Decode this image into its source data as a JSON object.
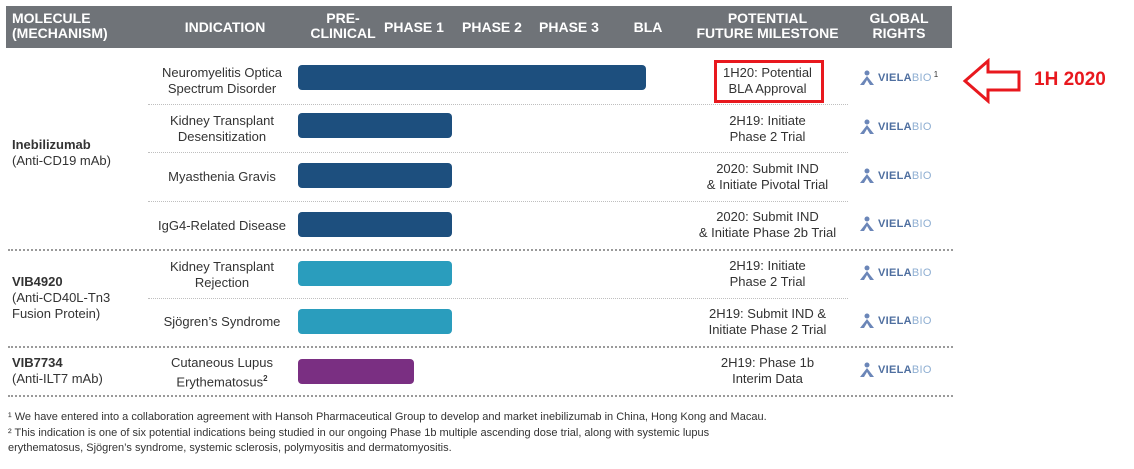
{
  "header": {
    "molecule": "MOLECULE",
    "mechanism": "(MECHANISM)",
    "indication": "INDICATION",
    "preclinical_1": "PRE-",
    "preclinical_2": "CLINICAL",
    "phase1": "PHASE 1",
    "phase2": "PHASE 2",
    "phase3": "PHASE 3",
    "bla": "BLA",
    "potential_1": "POTENTIAL",
    "potential_2": "FUTURE MILESTONE",
    "global_1": "GLOBAL",
    "global_2": "RIGHTS"
  },
  "molecules": [
    {
      "name": "Inebilizumab",
      "mechanism": "(Anti-CD19 mAb)"
    },
    {
      "name": "VIB4920",
      "mechanism_1": "(Anti-CD40L-Tn3",
      "mechanism_2": "Fusion Protein)"
    },
    {
      "name": "VIB7734",
      "mechanism": "(Anti-ILT7 mAb)"
    }
  ],
  "rows": [
    {
      "indication_1": "Neuromyelitis Optica",
      "indication_2": "Spectrum Disorder",
      "stage": "BLA",
      "milestone_1": "1H20: Potential",
      "milestone_2": "BLA Approval",
      "color": "#1d4f7e",
      "rights_sup": "1"
    },
    {
      "indication_1": "Kidney Transplant",
      "indication_2": "Desensitization",
      "stage": "Phase 2",
      "milestone_1": "2H19: Initiate",
      "milestone_2": "Phase 2 Trial",
      "color": "#1d4f7e"
    },
    {
      "indication_1": "Myasthenia Gravis",
      "indication_2": "",
      "stage": "Phase 2",
      "milestone_1": "2020: Submit IND",
      "milestone_2": "& Initiate Pivotal Trial",
      "color": "#1d4f7e"
    },
    {
      "indication_1": "IgG4-Related Disease",
      "indication_2": "",
      "stage": "Phase 2",
      "milestone_1": "2020: Submit IND",
      "milestone_2": "& Initiate Phase 2b Trial",
      "color": "#1d4f7e"
    },
    {
      "indication_1": "Kidney Transplant",
      "indication_2": "Rejection",
      "stage": "Phase 2",
      "milestone_1": "2H19: Initiate",
      "milestone_2": "Phase 2 Trial",
      "color": "#2a9dbd"
    },
    {
      "indication_1": "Sjögren’s Syndrome",
      "indication_2": "",
      "stage": "Phase 2",
      "milestone_1": "2H19: Submit IND &",
      "milestone_2": "Initiate Phase 2 Trial",
      "color": "#2a9dbd"
    },
    {
      "indication_1": "Cutaneous Lupus",
      "indication_2": "Erythematosus",
      "indication_sup": "2",
      "stage": "Phase 1",
      "milestone_1": "2H19: Phase 1b",
      "milestone_2": "Interim Data",
      "color": "#7a2f82"
    }
  ],
  "rights_logo": {
    "part1": "VIELA",
    "part2": "BIO",
    "icon": "viela-figure-icon"
  },
  "footnotes": [
    "¹ We have entered into a collaboration agreement with Hansoh Pharmaceutical Group to develop and market inebilizumab in China, Hong Kong and Macau.",
    "² This indication is one of six potential indications being studied in our ongoing Phase 1b multiple ascending dose trial, along with systemic lupus",
    "erythematosus, Sjögren’s syndrome, systemic sclerosis, polymyositis and dermatomyositis."
  ],
  "annotation": {
    "label": "1H 2020",
    "color": "#e8181e",
    "icon": "left-arrow-outline-icon"
  }
}
